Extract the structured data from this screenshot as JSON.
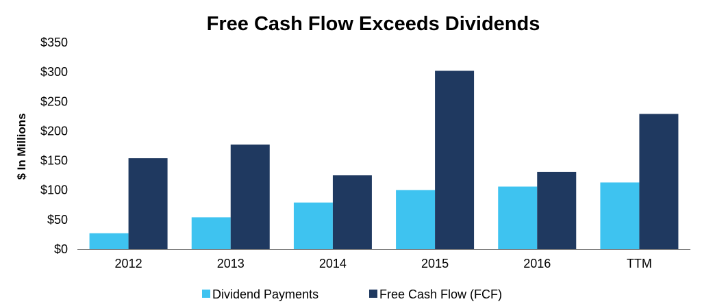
{
  "chart_data": {
    "type": "bar",
    "title": "Free Cash Flow Exceeds Dividends",
    "ylabel": "$ In Millions",
    "xlabel": "",
    "ylim": [
      0,
      350
    ],
    "yticks": [
      0,
      50,
      100,
      150,
      200,
      250,
      300,
      350
    ],
    "ytick_labels": [
      "$0",
      "$50",
      "$100",
      "$150",
      "$200",
      "$250",
      "$300",
      "$350"
    ],
    "categories": [
      "2012",
      "2013",
      "2014",
      "2015",
      "2016",
      "TTM"
    ],
    "series": [
      {
        "name": "Dividend Payments",
        "color": "#3EC3F0",
        "values": [
          27,
          54,
          79,
          100,
          106,
          113
        ]
      },
      {
        "name": "Free Cash Flow (FCF)",
        "color": "#1F3960",
        "values": [
          154,
          177,
          125,
          302,
          131,
          229
        ]
      }
    ],
    "grid": false,
    "legend_position": "bottom-center"
  }
}
